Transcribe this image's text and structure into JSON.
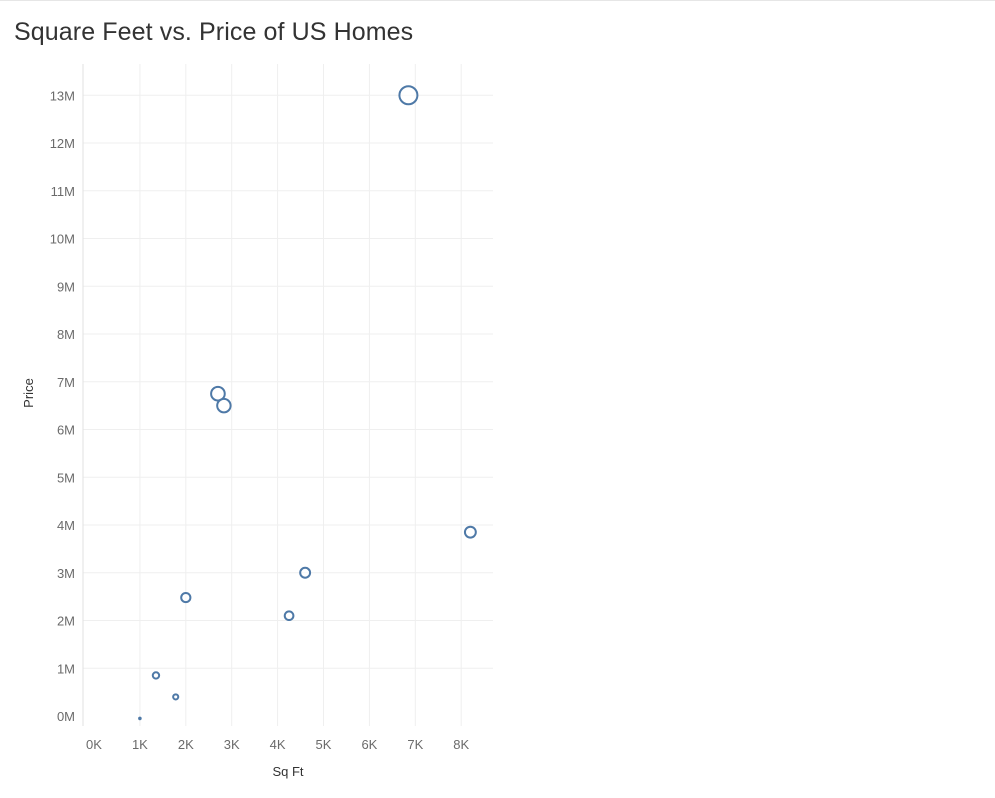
{
  "chart_data": {
    "type": "scatter",
    "title": "Square Feet vs. Price of US Homes",
    "xlabel": "Sq Ft",
    "ylabel": "Price",
    "xlim": [
      0,
      8500
    ],
    "ylim": [
      0,
      13500000
    ],
    "x_ticks": [
      {
        "value": 0,
        "label": "0K"
      },
      {
        "value": 1000,
        "label": "1K"
      },
      {
        "value": 2000,
        "label": "2K"
      },
      {
        "value": 3000,
        "label": "3K"
      },
      {
        "value": 4000,
        "label": "4K"
      },
      {
        "value": 5000,
        "label": "5K"
      },
      {
        "value": 6000,
        "label": "6K"
      },
      {
        "value": 7000,
        "label": "7K"
      },
      {
        "value": 8000,
        "label": "8K"
      }
    ],
    "y_ticks": [
      {
        "value": 0,
        "label": "0M"
      },
      {
        "value": 1000000,
        "label": "1M"
      },
      {
        "value": 2000000,
        "label": "2M"
      },
      {
        "value": 3000000,
        "label": "3M"
      },
      {
        "value": 4000000,
        "label": "4M"
      },
      {
        "value": 5000000,
        "label": "5M"
      },
      {
        "value": 6000000,
        "label": "6M"
      },
      {
        "value": 7000000,
        "label": "7M"
      },
      {
        "value": 8000000,
        "label": "8M"
      },
      {
        "value": 9000000,
        "label": "9M"
      },
      {
        "value": 10000000,
        "label": "10M"
      },
      {
        "value": 11000000,
        "label": "11M"
      },
      {
        "value": 12000000,
        "label": "12M"
      },
      {
        "value": 13000000,
        "label": "13M"
      }
    ],
    "grid": true,
    "legend": "none",
    "marker_color": "#4e79a7",
    "marker_style": "hollow circle, size encodes price",
    "points": [
      {
        "x": 6850,
        "y": 13000000
      },
      {
        "x": 2700,
        "y": 6750000
      },
      {
        "x": 2830,
        "y": 6500000
      },
      {
        "x": 8200,
        "y": 3850000
      },
      {
        "x": 4600,
        "y": 3000000
      },
      {
        "x": 2000,
        "y": 2480000
      },
      {
        "x": 4250,
        "y": 2100000
      },
      {
        "x": 1350,
        "y": 850000
      },
      {
        "x": 1780,
        "y": 400000
      },
      {
        "x": 1000,
        "y": -50000
      }
    ]
  }
}
